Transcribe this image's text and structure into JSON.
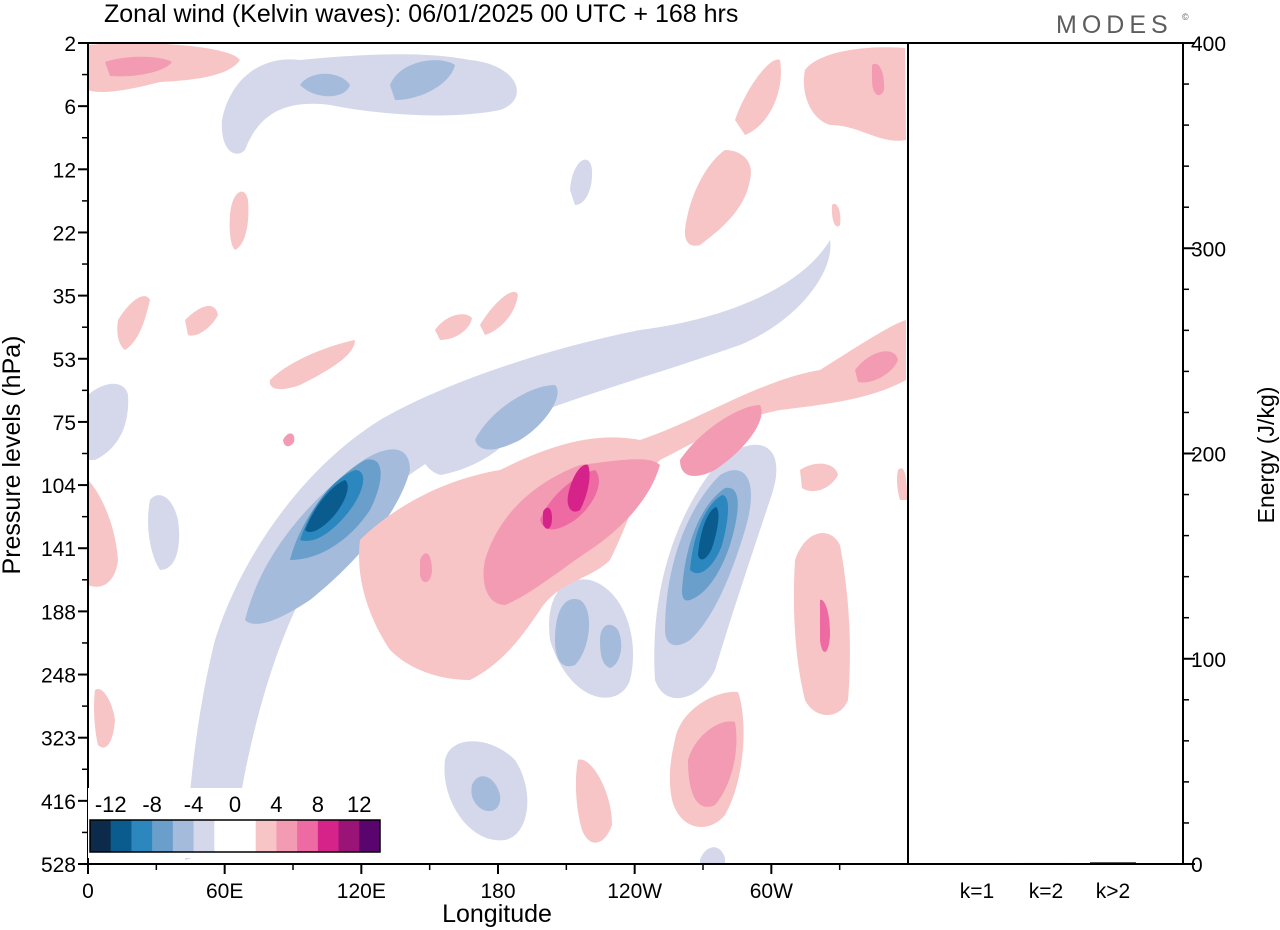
{
  "title": "Zonal wind (Kelvin waves):  06/01/2025  00 UTC  + 168 hrs",
  "brand": "MODES",
  "brand_mark": "©",
  "chart_data": [
    {
      "type": "heatmap",
      "title": "Zonal wind (Kelvin waves):  06/01/2025  00 UTC  + 168 hrs",
      "xlabel": "Longitude",
      "ylabel": "Pressure levels (hPa)",
      "x_ticks": [
        "0",
        "60E",
        "120E",
        "180",
        "120W",
        "60W"
      ],
      "y_ticks": [
        "2",
        "6",
        "12",
        "22",
        "35",
        "53",
        "75",
        "104",
        "141",
        "188",
        "248",
        "323",
        "416",
        "528"
      ],
      "y_inverted": true,
      "colorbar": {
        "labels": [
          "-12",
          "-8",
          "-4",
          "0",
          "4",
          "8",
          "12"
        ],
        "colors": [
          "#0c2a4a",
          "#0a5c8e",
          "#2b87bd",
          "#6a9fcb",
          "#a5bbdb",
          "#d4d8ea",
          "#ffffff",
          "#ffffff",
          "#f7c5c5",
          "#f49bb4",
          "#ee6aa2",
          "#d6238a",
          "#9a1377",
          "#5a056e"
        ]
      },
      "features": [
        {
          "sign": "negative",
          "level": -12,
          "longitude_deg": 102,
          "pressure_hPa": 115
        },
        {
          "sign": "negative",
          "level": -12,
          "longitude_deg": 275,
          "pressure_hPa": 130
        },
        {
          "sign": "positive",
          "level": 8,
          "longitude_deg": 212,
          "pressure_hPa": 95
        },
        {
          "sign": "positive",
          "level": 4,
          "longitude_deg": 280,
          "pressure_hPa": 350
        }
      ]
    },
    {
      "type": "bar",
      "categories": [
        "k=1",
        "k=2",
        "k>2"
      ],
      "values": [
        0.3,
        0.5,
        0.8
      ],
      "ylabel": "Energy (J/kg)",
      "ylim": [
        0,
        400
      ],
      "y_ticks": [
        "0",
        "100",
        "200",
        "300",
        "400"
      ]
    }
  ]
}
